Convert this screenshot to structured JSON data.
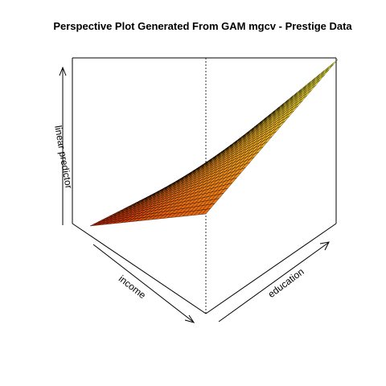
{
  "chart_data": {
    "type": "surface",
    "title": "Perspective Plot Generated From GAM mgcv - Prestige Data",
    "xlabel": "income",
    "ylabel": "education",
    "zlabel": "linear predictor",
    "colormap": [
      "#cc2200",
      "#e86a10",
      "#f4b020",
      "#ffff40"
    ],
    "grid": {
      "nx": 30,
      "ny": 30
    },
    "surface_description": "smooth increasing surface; low at low income/low education, rising to a broad plateau at high education"
  }
}
